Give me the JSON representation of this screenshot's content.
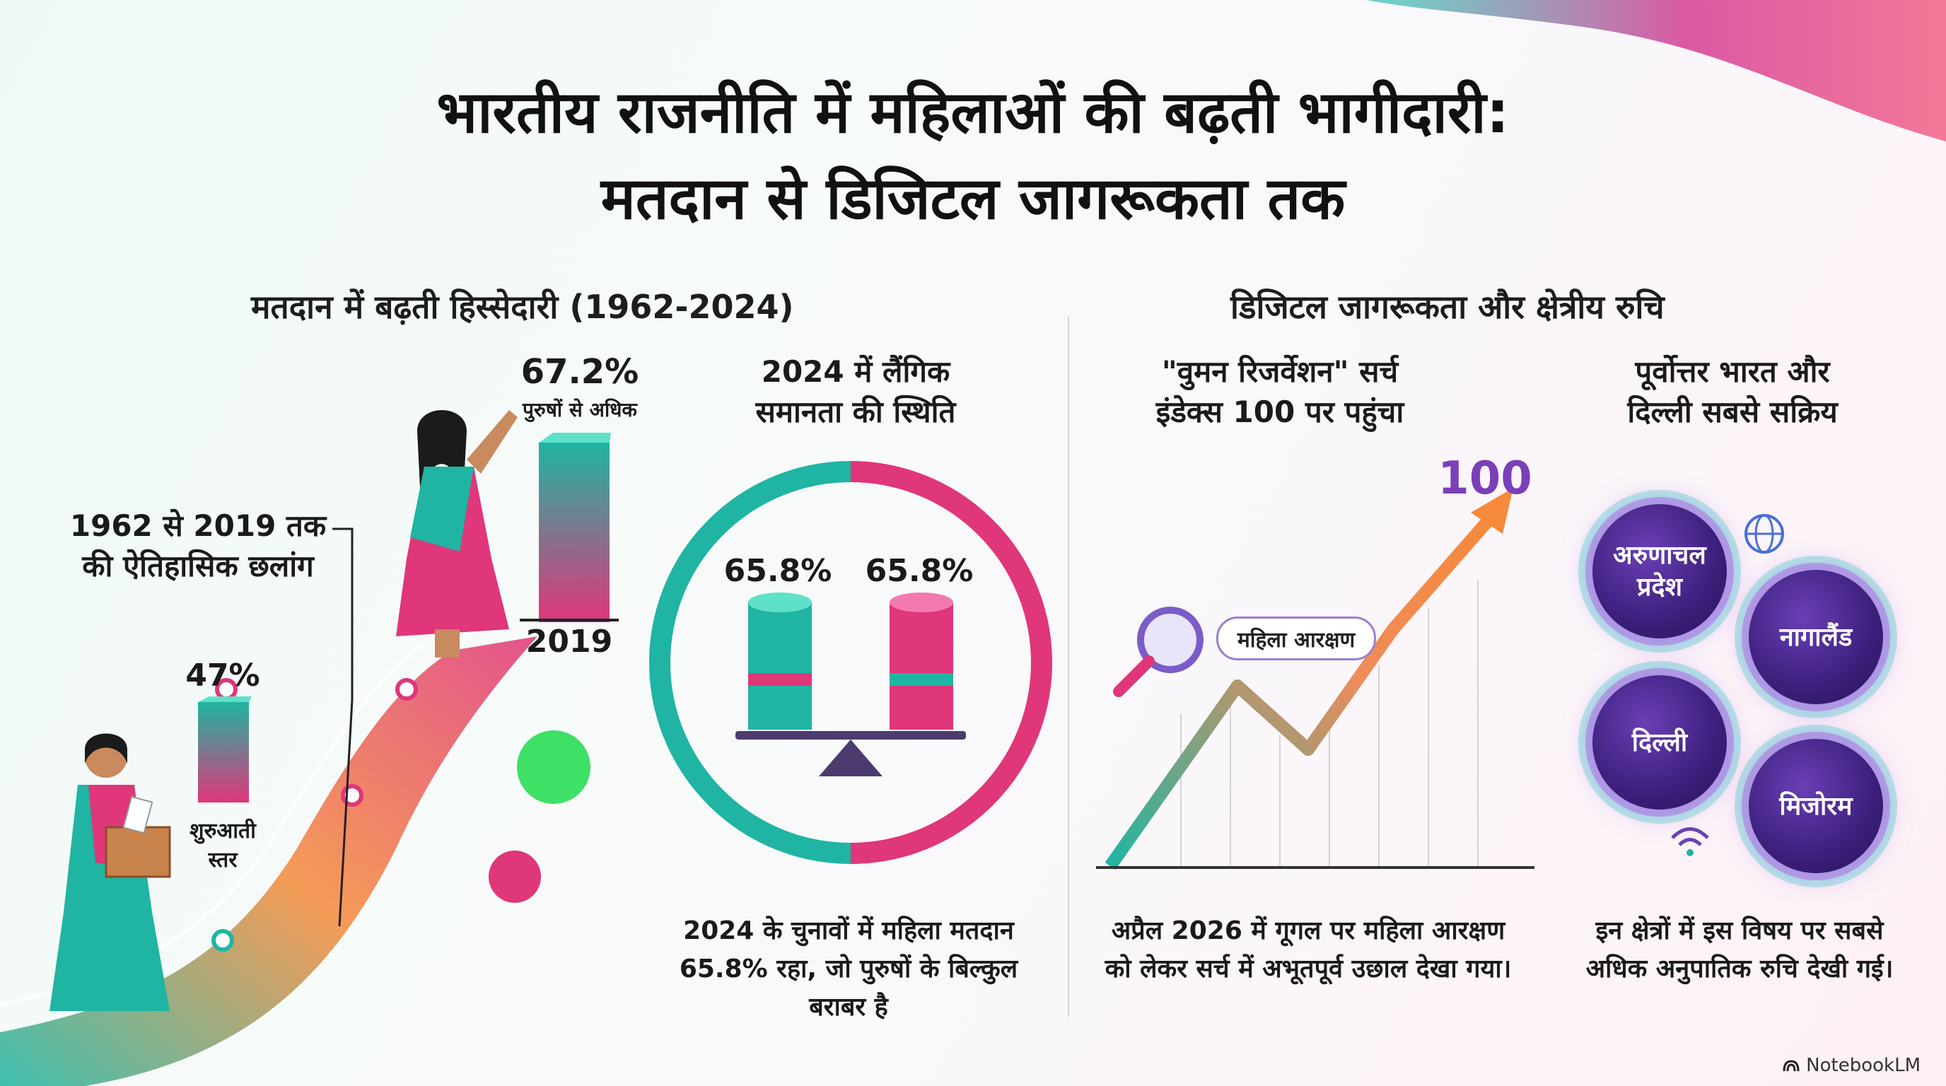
{
  "title": {
    "line1": "भारतीय राजनीति में महिलाओं की बढ़ती भागीदारी:",
    "line2": "मतदान से डिजिटल जागरूकता तक"
  },
  "left_section": {
    "heading": "मतदान में बढ़ती हिस्सेदारी (1962-2024)",
    "timeline": {
      "start_value": "47%",
      "start_label_line1": "शुरुआती",
      "start_label_line2": "स्तर",
      "end_value": "67.2%",
      "end_sublabel": "पुरुषों से अधिक",
      "end_year": "2019",
      "leap_line1": "1962 से 2019 तक",
      "leap_line2": "की ऐतिहासिक छलांग"
    },
    "parity": {
      "heading_line1": "2024 में लैंगिक",
      "heading_line2": "समानता की स्थिति",
      "left_value": "65.8%",
      "right_value": "65.8%",
      "caption_line1": "2024 के चुनावों में महिला मतदान",
      "caption_line2": "65.8% रहा, जो पुरुषों के बिल्कुल",
      "caption_line3": "बराबर है"
    }
  },
  "right_section": {
    "heading": "डिजिटल जागरूकता और क्षेत्रीय रुचि",
    "search": {
      "heading_line1": "\"वुमन रिजर्वेशन\" सर्च",
      "heading_line2": "इंडेक्स 100 पर पहुंचा",
      "peak_value": "100",
      "search_term": "महिला आरक्षण",
      "caption_line1": "अप्रैल 2026 में गूगल पर महिला आरक्षण",
      "caption_line2": "को लेकर सर्च में अभूतपूर्व उछाल देखा गया।"
    },
    "regions": {
      "heading_line1": "पूर्वोत्तर भारत और",
      "heading_line2": "दिल्ली सबसे सक्रिय",
      "items": [
        "अरुणाचल प्रदेश",
        "नागालैंड",
        "दिल्ली",
        "मिजोरम"
      ],
      "caption_line1": "इन क्षेत्रों में इस विषय पर सबसे",
      "caption_line2": "अधिक अनुपातिक रुचि देखी गई।"
    }
  },
  "brand": "NotebookLM",
  "colors": {
    "teal": "#1fb5a2",
    "magenta": "#e0367a",
    "purple": "#6a3fb5",
    "orange": "#f58a3a"
  }
}
